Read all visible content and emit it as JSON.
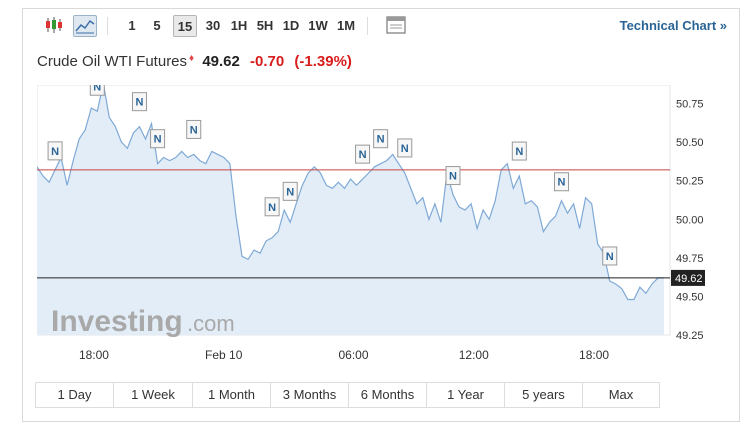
{
  "toolbar": {
    "intervals": [
      "1",
      "5",
      "15",
      "30",
      "1H",
      "5H",
      "1D",
      "1W",
      "1M"
    ],
    "active_interval": "15",
    "technical_chart_link": "Technical Chart »"
  },
  "quote": {
    "name": "Crude Oil WTI Futures",
    "price": "49.62",
    "change": "-0.70",
    "change_pct": "(-1.39%)"
  },
  "watermark": {
    "brand": "Investing",
    "suffix": ".com"
  },
  "ranges": [
    "1 Day",
    "1 Week",
    "1 Month",
    "3 Months",
    "6 Months",
    "1 Year",
    "5 years",
    "Max"
  ],
  "colors": {
    "line": "#7fa9d6",
    "fill": "#e3edf7",
    "prev_close": "#cc4444",
    "last_price": "#222222",
    "link": "#2a6496",
    "negative": "#d91c1c"
  },
  "chart_data": {
    "type": "area",
    "title": "",
    "xlabel": "",
    "ylabel": "",
    "x_ticks": [
      "18:00",
      "Feb 10",
      "06:00",
      "12:00",
      "18:00"
    ],
    "y_ticks": [
      "50.75",
      "50.50",
      "50.25",
      "50.00",
      "49.75",
      "49.50",
      "49.25"
    ],
    "ylim": [
      49.25,
      50.87
    ],
    "prev_close": 50.32,
    "last_price_label": "49.62",
    "last_price": 49.62,
    "news_marker_label": "N",
    "series": [
      {
        "values": [
          50.34,
          50.28,
          50.24,
          50.32,
          50.4,
          50.22,
          50.38,
          50.52,
          50.58,
          50.72,
          50.7,
          50.88,
          50.66,
          50.6,
          50.5,
          50.46,
          50.56,
          50.6,
          50.52,
          50.62,
          50.36,
          50.4,
          50.38,
          50.4,
          50.44,
          50.4,
          50.42,
          50.38,
          50.36,
          50.44,
          50.42,
          50.4,
          50.36,
          50.02,
          49.76,
          49.74,
          49.8,
          49.78,
          49.86,
          49.88,
          49.92,
          50.06,
          49.98,
          50.1,
          50.22,
          50.3,
          50.34,
          50.3,
          50.22,
          50.2,
          50.24,
          50.2,
          50.26,
          50.22,
          50.26,
          50.3,
          50.34,
          50.36,
          50.38,
          50.42,
          50.36,
          50.3,
          50.2,
          50.1,
          50.14,
          50.0,
          50.1,
          49.98,
          50.3,
          50.16,
          50.08,
          50.06,
          50.1,
          49.94,
          50.06,
          50.0,
          50.12,
          50.32,
          50.36,
          50.2,
          50.28,
          50.1,
          50.12,
          50.08,
          49.92,
          49.98,
          50.02,
          50.12,
          50.04,
          50.1,
          49.94,
          50.14,
          50.1,
          49.84,
          49.78,
          49.6,
          49.58,
          49.55,
          49.48,
          49.48,
          49.56,
          49.52,
          49.58,
          49.62,
          49.62
        ]
      }
    ],
    "news_markers_count": 14
  }
}
